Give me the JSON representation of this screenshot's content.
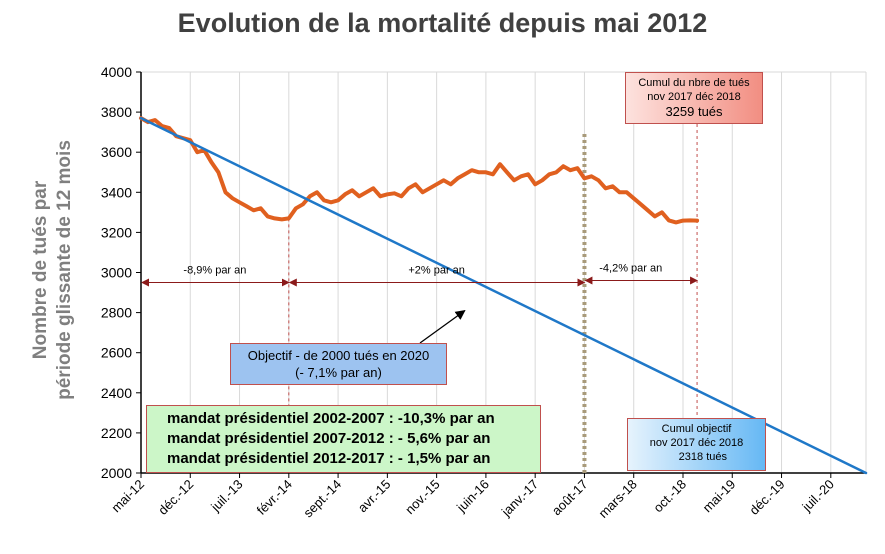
{
  "chart_data": {
    "type": "line",
    "title": "Evolution de la mortalité depuis mai 2012",
    "ylabel": [
      "Nombre de tués par",
      "période  glissante de 12 mois"
    ],
    "xlabel": "",
    "ylim": [
      2000,
      4000
    ],
    "yticks": [
      2000,
      2200,
      2400,
      2600,
      2800,
      3000,
      3200,
      3400,
      3600,
      3800,
      4000
    ],
    "xtick_labels": [
      "mai-12",
      "déc.-12",
      "juil.-13",
      "févr.-14",
      "sept.-14",
      "avr.-15",
      "nov.-15",
      "juin-16",
      "janv.-17",
      "août-17",
      "mars-18",
      "oct.-18",
      "mai-19",
      "déc.-19",
      "juil.-20"
    ],
    "grid": "vertical",
    "colors": {
      "actual": "#e0601f",
      "objective": "#1f78c8",
      "marker": "#a89a7a",
      "arrow": "#8b1a1a",
      "guide": "#c0504d"
    },
    "series": [
      {
        "key": "actual",
        "x": [
          "2012-05",
          "2012-06",
          "2012-07",
          "2012-08",
          "2012-09",
          "2012-10",
          "2012-11",
          "2012-12",
          "2013-01",
          "2013-02",
          "2013-03",
          "2013-04",
          "2013-05",
          "2013-06",
          "2013-07",
          "2013-08",
          "2013-09",
          "2013-10",
          "2013-11",
          "2013-12",
          "2014-01",
          "2014-02",
          "2014-03",
          "2014-04",
          "2014-05",
          "2014-06",
          "2014-07",
          "2014-08",
          "2014-09",
          "2014-10",
          "2014-11",
          "2014-12",
          "2015-01",
          "2015-02",
          "2015-03",
          "2015-04",
          "2015-05",
          "2015-06",
          "2015-07",
          "2015-08",
          "2015-09",
          "2015-10",
          "2015-11",
          "2015-12",
          "2016-01",
          "2016-02",
          "2016-03",
          "2016-04",
          "2016-05",
          "2016-06",
          "2016-07",
          "2016-08",
          "2016-09",
          "2016-10",
          "2016-11",
          "2016-12",
          "2017-01",
          "2017-02",
          "2017-03",
          "2017-04",
          "2017-05",
          "2017-06",
          "2017-07",
          "2017-08",
          "2017-09",
          "2017-10",
          "2017-11",
          "2017-12",
          "2018-01",
          "2018-02",
          "2018-03",
          "2018-04",
          "2018-05",
          "2018-06",
          "2018-07",
          "2018-08",
          "2018-09",
          "2018-10",
          "2018-11",
          "2018-12"
        ],
        "values": [
          3770,
          3750,
          3760,
          3730,
          3720,
          3680,
          3670,
          3660,
          3600,
          3610,
          3550,
          3500,
          3400,
          3370,
          3350,
          3330,
          3310,
          3320,
          3280,
          3270,
          3265,
          3270,
          3320,
          3340,
          3380,
          3400,
          3360,
          3350,
          3360,
          3390,
          3410,
          3380,
          3400,
          3420,
          3380,
          3390,
          3395,
          3380,
          3420,
          3440,
          3400,
          3420,
          3440,
          3460,
          3440,
          3470,
          3490,
          3510,
          3500,
          3500,
          3490,
          3540,
          3500,
          3460,
          3480,
          3490,
          3440,
          3460,
          3490,
          3500,
          3530,
          3510,
          3520,
          3470,
          3480,
          3460,
          3420,
          3430,
          3400,
          3400,
          3370,
          3340,
          3310,
          3280,
          3300,
          3260,
          3250,
          3259,
          3260,
          3259
        ]
      },
      {
        "key": "objective",
        "x": [
          "2012-05",
          "2020-12"
        ],
        "values": [
          3770,
          2000
        ]
      }
    ],
    "vertical_markers": [
      {
        "x": "2014-02",
        "style": "dashed-thin"
      },
      {
        "x": "2017-08",
        "style": "dotted-thick"
      },
      {
        "x": "2018-12",
        "style": "dashed-thin"
      }
    ],
    "period_arrows": [
      {
        "from": "2012-05",
        "to": "2014-02",
        "y": 2950,
        "label": "-8,9% par an"
      },
      {
        "from": "2014-02",
        "to": "2017-08",
        "y": 2950,
        "label": "+2% par an"
      },
      {
        "from": "2017-08",
        "to": "2018-12",
        "y": 2960,
        "label": "-4,2% par an"
      }
    ],
    "pointer_arrow_target": {
      "x": "2016-03",
      "y": 2810
    }
  },
  "annotations": {
    "cumul_tues": {
      "line1": "Cumul du nbre de tués",
      "line2": "nov 2017 déc 2018",
      "line3": "3259 tués"
    },
    "objectif": {
      "line1": "Objectif - de 2000 tués en 2020",
      "line2": "(- 7,1% par an)"
    },
    "mandats": [
      "mandat présidentiel 2002-2007 : -10,3% par an",
      "mandat présidentiel 2007-2012 : - 5,6% par an",
      "mandat présidentiel 2012-2017 : - 1,5% par an"
    ],
    "cumul_objectif": {
      "line1": "Cumul objectif",
      "line2": "nov 2017 déc 2018",
      "line3": "2318 tués"
    }
  }
}
